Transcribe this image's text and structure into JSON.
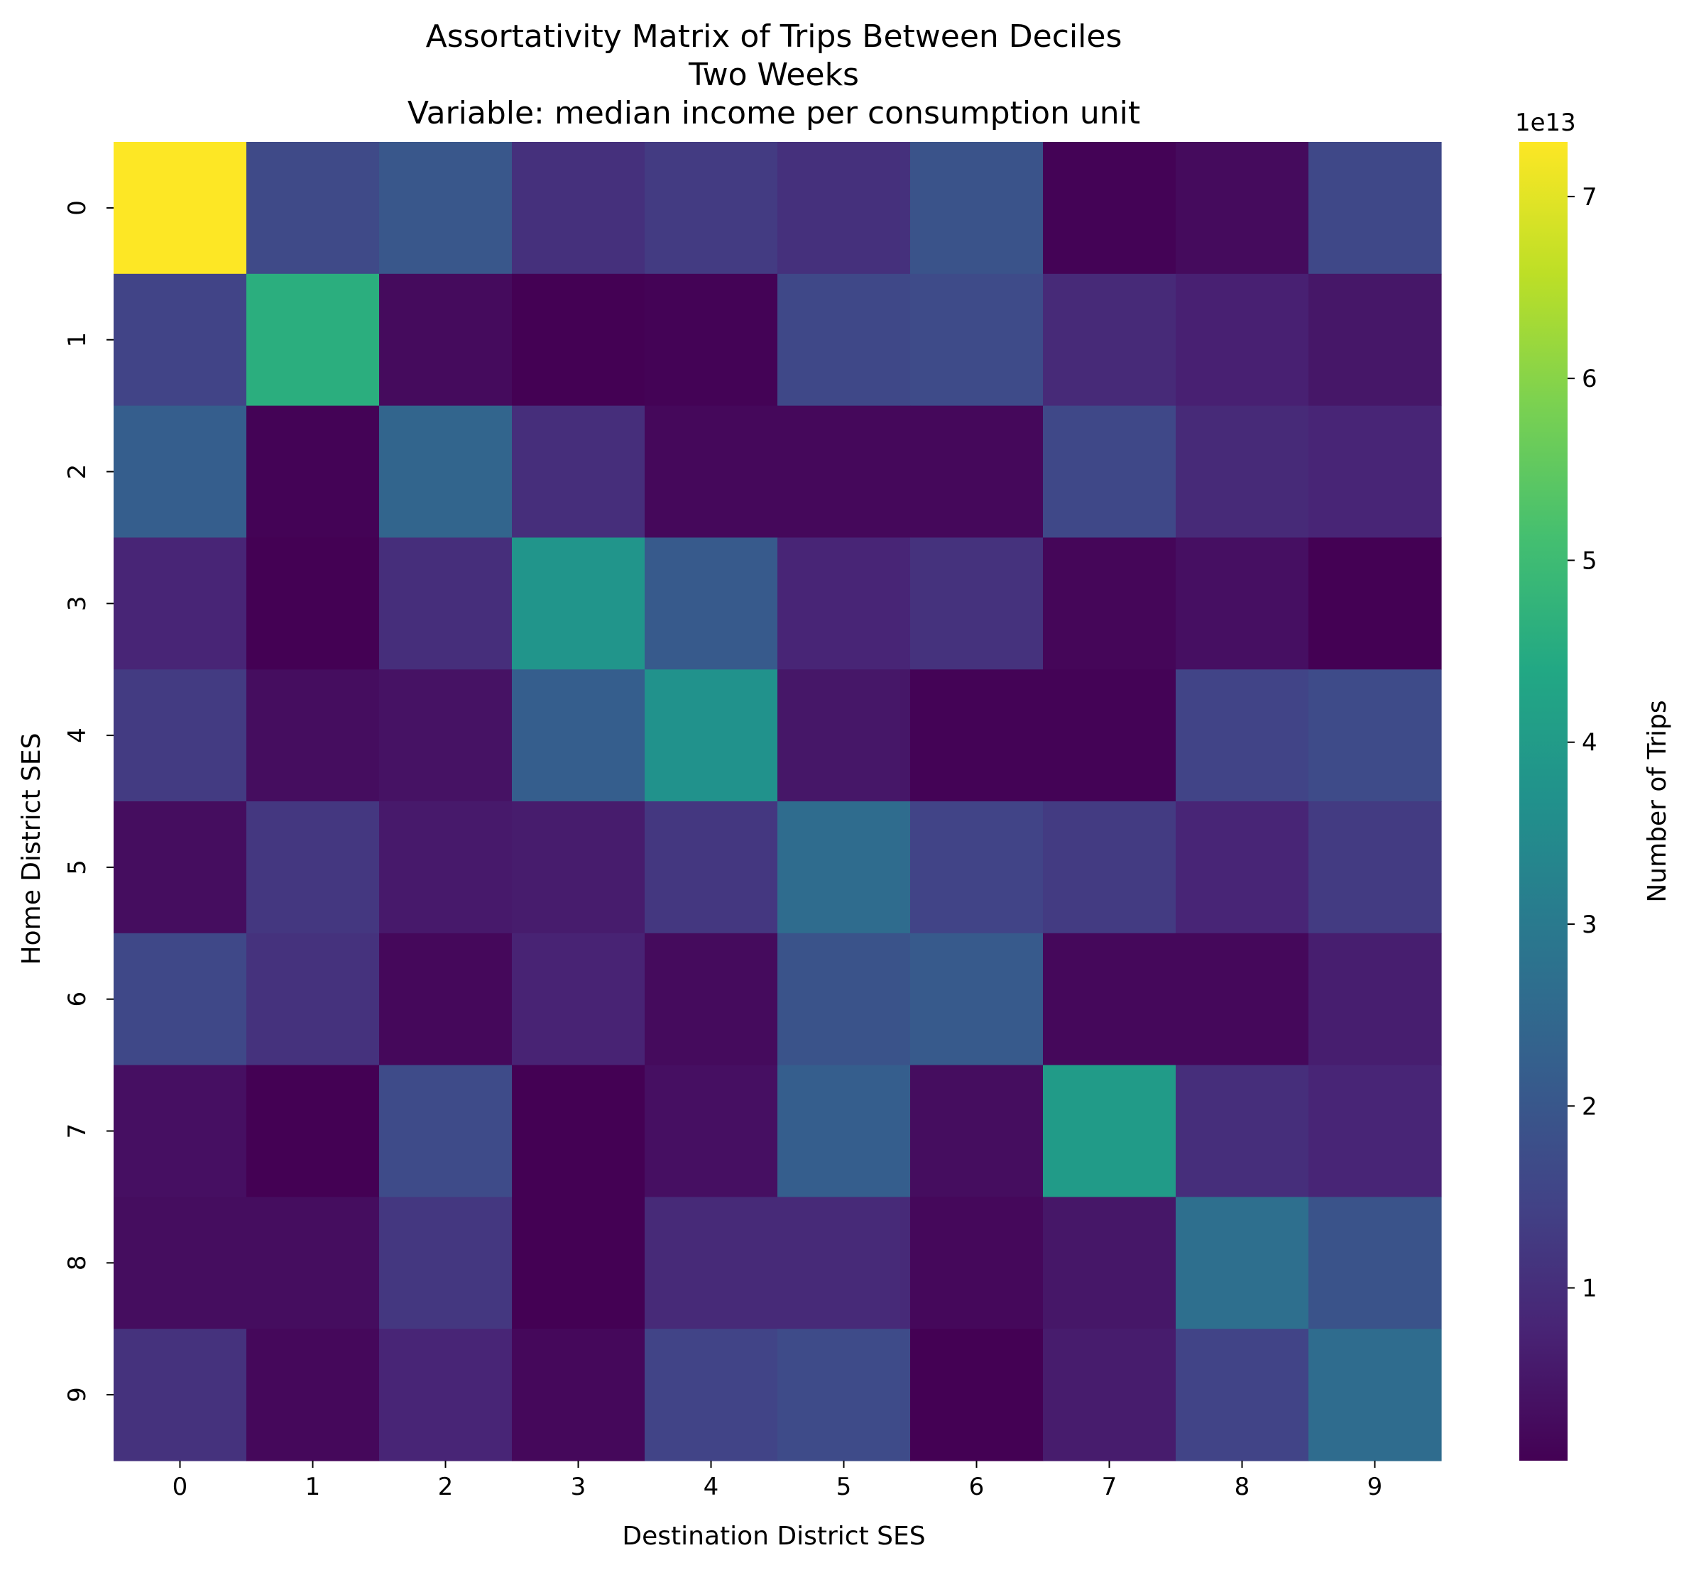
{
  "chart_data": {
    "type": "heatmap",
    "title": [
      "Assortativity Matrix of Trips Between Deciles",
      "Two Weeks",
      "Variable: median income per consumption unit"
    ],
    "xlabel": "Destination District SES",
    "ylabel": "Home District SES",
    "x_categories": [
      "0",
      "1",
      "2",
      "3",
      "4",
      "5",
      "6",
      "7",
      "8",
      "9"
    ],
    "y_categories": [
      "0",
      "1",
      "2",
      "3",
      "4",
      "5",
      "6",
      "7",
      "8",
      "9"
    ],
    "colormap": "viridis",
    "colorbar": {
      "label": "Number of Trips",
      "offset_text": "1e13",
      "min": 0.05,
      "max": 7.3,
      "ticks": [
        "1",
        "2",
        "3",
        "4",
        "5",
        "6",
        "7"
      ],
      "tick_values": [
        1,
        2,
        3,
        4,
        5,
        6,
        7
      ]
    },
    "values_unit_scale": "1e13",
    "values": [
      [
        7.3,
        1.65,
        2.0,
        1.05,
        1.3,
        1.05,
        1.9,
        0.1,
        0.25,
        1.6
      ],
      [
        1.5,
        4.6,
        0.25,
        0.05,
        0.1,
        1.6,
        1.7,
        0.9,
        0.7,
        0.5
      ],
      [
        2.2,
        0.1,
        2.4,
        1.0,
        0.2,
        0.2,
        0.2,
        1.6,
        0.9,
        0.8
      ],
      [
        0.8,
        0.05,
        1.0,
        3.8,
        2.1,
        0.8,
        1.1,
        0.15,
        0.35,
        0.05
      ],
      [
        1.3,
        0.3,
        0.4,
        2.2,
        3.7,
        0.5,
        0.1,
        0.1,
        1.5,
        1.7
      ],
      [
        0.3,
        1.2,
        0.55,
        0.6,
        1.2,
        2.6,
        1.5,
        1.3,
        0.8,
        1.3
      ],
      [
        1.6,
        1.1,
        0.2,
        0.75,
        0.25,
        1.9,
        2.1,
        0.2,
        0.2,
        0.65
      ],
      [
        0.35,
        0.05,
        1.7,
        0.05,
        0.35,
        2.2,
        0.3,
        4.0,
        1.0,
        0.8
      ],
      [
        0.3,
        0.3,
        1.2,
        0.05,
        0.9,
        0.9,
        0.2,
        0.5,
        2.7,
        1.9
      ],
      [
        1.1,
        0.2,
        0.8,
        0.2,
        1.5,
        1.7,
        0.05,
        0.6,
        1.5,
        2.6
      ]
    ]
  }
}
